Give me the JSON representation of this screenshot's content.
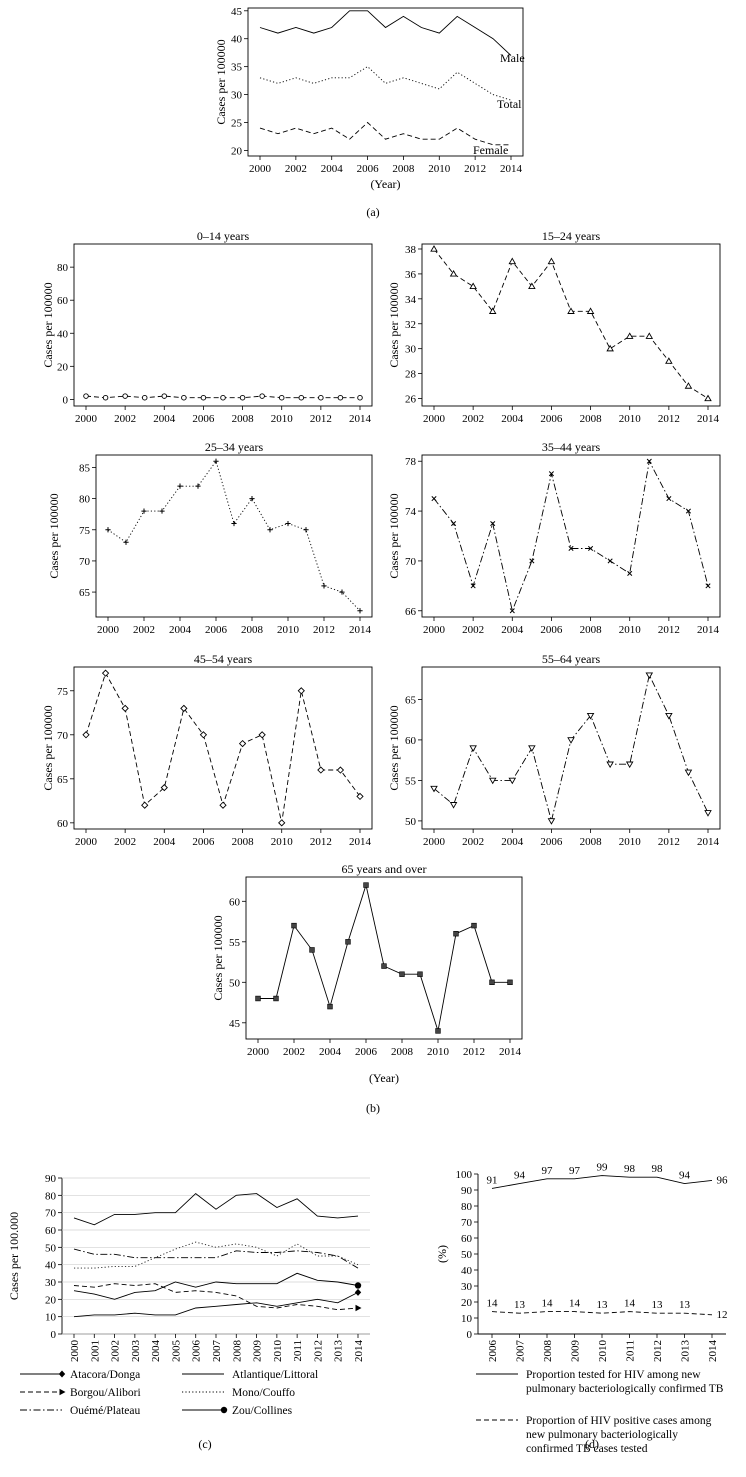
{
  "captions": {
    "a": "(a)",
    "b": "(b)",
    "c": "(c)",
    "d": "(d)"
  },
  "chart_data": [
    {
      "id": "a",
      "type": "line",
      "title": "",
      "xlabel": "(Year)",
      "ylabel": "Cases per 100000",
      "x": [
        2000,
        2001,
        2002,
        2003,
        2004,
        2005,
        2006,
        2007,
        2008,
        2009,
        2010,
        2011,
        2012,
        2013,
        2014
      ],
      "xticks": [
        2000,
        2002,
        2004,
        2006,
        2008,
        2010,
        2012,
        2014
      ],
      "ylim": [
        19,
        45.5
      ],
      "yticks": [
        20,
        25,
        30,
        35,
        40,
        45
      ],
      "grid": false,
      "series": [
        {
          "name": "Male",
          "style": "solid",
          "values": [
            42,
            41,
            42,
            41,
            42,
            45,
            45,
            42,
            44,
            42,
            41,
            44,
            42,
            40,
            37
          ]
        },
        {
          "name": "Total",
          "style": "dotted",
          "values": [
            33,
            32,
            33,
            32,
            33,
            33,
            35,
            32,
            33,
            32,
            31,
            34,
            32,
            30,
            29
          ]
        },
        {
          "name": "Female",
          "style": "dashed",
          "values": [
            24,
            23,
            24,
            23,
            24,
            22,
            25,
            22,
            23,
            22,
            22,
            24,
            22,
            21,
            21
          ]
        }
      ]
    },
    {
      "id": "b1",
      "type": "line",
      "title": "0–14 years",
      "xlabel": "",
      "ylabel": "Cases per 100000",
      "x": [
        2000,
        2001,
        2002,
        2003,
        2004,
        2005,
        2006,
        2007,
        2008,
        2009,
        2010,
        2011,
        2012,
        2013,
        2014
      ],
      "xticks": [
        2000,
        2002,
        2004,
        2006,
        2008,
        2010,
        2012,
        2014
      ],
      "ylim": [
        -4,
        94
      ],
      "yticks": [
        0,
        20,
        40,
        60,
        80
      ],
      "series": [
        {
          "marker": "circle",
          "style": "dashed",
          "values": [
            2,
            1,
            2,
            1,
            2,
            1,
            1,
            1,
            1,
            2,
            1,
            1,
            1,
            1,
            1
          ]
        }
      ]
    },
    {
      "id": "b2",
      "type": "line",
      "title": "15–24 years",
      "xlabel": "",
      "ylabel": "Cases per 100000",
      "x": [
        2000,
        2001,
        2002,
        2003,
        2004,
        2005,
        2006,
        2007,
        2008,
        2009,
        2010,
        2011,
        2012,
        2013,
        2014
      ],
      "xticks": [
        2000,
        2002,
        2004,
        2006,
        2008,
        2010,
        2012,
        2014
      ],
      "ylim": [
        25.4,
        38.4
      ],
      "yticks": [
        26,
        28,
        30,
        32,
        34,
        36,
        38
      ],
      "series": [
        {
          "marker": "triangle-up",
          "style": "dashed",
          "values": [
            38,
            36,
            35,
            33,
            37,
            35,
            37,
            33,
            33,
            30,
            31,
            31,
            29,
            27,
            26
          ]
        }
      ]
    },
    {
      "id": "b3",
      "type": "line",
      "title": "25–34 years",
      "xlabel": "",
      "ylabel": "Cases per 100000",
      "x": [
        2000,
        2001,
        2002,
        2003,
        2004,
        2005,
        2006,
        2007,
        2008,
        2009,
        2010,
        2011,
        2012,
        2013,
        2014
      ],
      "xticks": [
        2000,
        2002,
        2004,
        2006,
        2008,
        2010,
        2012,
        2014
      ],
      "ylim": [
        61,
        87
      ],
      "yticks": [
        65,
        70,
        75,
        80,
        85
      ],
      "series": [
        {
          "marker": "plus",
          "style": "dotted",
          "values": [
            75,
            73,
            78,
            78,
            82,
            82,
            86,
            76,
            80,
            75,
            76,
            75,
            66,
            65,
            62
          ]
        }
      ]
    },
    {
      "id": "b4",
      "type": "line",
      "title": "35–44 years",
      "xlabel": "",
      "ylabel": "Cases per 100000",
      "x": [
        2000,
        2001,
        2002,
        2003,
        2004,
        2005,
        2006,
        2007,
        2008,
        2009,
        2010,
        2011,
        2012,
        2013,
        2014
      ],
      "xticks": [
        2000,
        2002,
        2004,
        2006,
        2008,
        2010,
        2012,
        2014
      ],
      "ylim": [
        65.5,
        78.5
      ],
      "yticks": [
        66,
        70,
        74,
        78
      ],
      "series": [
        {
          "marker": "x",
          "style": "dashdot",
          "values": [
            75,
            73,
            68,
            73,
            66,
            70,
            77,
            71,
            71,
            70,
            69,
            78,
            75,
            74,
            68
          ]
        }
      ]
    },
    {
      "id": "b5",
      "type": "line",
      "title": "45–54 years",
      "xlabel": "",
      "ylabel": "Cases per 100000",
      "x": [
        2000,
        2001,
        2002,
        2003,
        2004,
        2005,
        2006,
        2007,
        2008,
        2009,
        2010,
        2011,
        2012,
        2013,
        2014
      ],
      "xticks": [
        2000,
        2002,
        2004,
        2006,
        2008,
        2010,
        2012,
        2014
      ],
      "ylim": [
        59.3,
        77.7
      ],
      "yticks": [
        60,
        65,
        70,
        75
      ],
      "series": [
        {
          "marker": "diamond",
          "style": "dashed",
          "values": [
            70,
            77,
            73,
            62,
            64,
            73,
            70,
            62,
            69,
            70,
            60,
            75,
            66,
            66,
            63
          ]
        }
      ]
    },
    {
      "id": "b6",
      "type": "line",
      "title": "55–64 years",
      "xlabel": "",
      "ylabel": "Cases per 100000",
      "x": [
        2000,
        2001,
        2002,
        2003,
        2004,
        2005,
        2006,
        2007,
        2008,
        2009,
        2010,
        2011,
        2012,
        2013,
        2014
      ],
      "xticks": [
        2000,
        2002,
        2004,
        2006,
        2008,
        2010,
        2012,
        2014
      ],
      "ylim": [
        49,
        69
      ],
      "yticks": [
        50,
        55,
        60,
        65
      ],
      "series": [
        {
          "marker": "triangle-down",
          "style": "dashdot",
          "values": [
            54,
            52,
            59,
            55,
            55,
            59,
            50,
            60,
            63,
            57,
            57,
            68,
            63,
            56,
            51
          ]
        }
      ]
    },
    {
      "id": "b7",
      "type": "line",
      "title": "65 years and over",
      "xlabel": "(Year)",
      "ylabel": "Cases per 100000",
      "x": [
        2000,
        2001,
        2002,
        2003,
        2004,
        2005,
        2006,
        2007,
        2008,
        2009,
        2010,
        2011,
        2012,
        2013,
        2014
      ],
      "xticks": [
        2000,
        2002,
        2004,
        2006,
        2008,
        2010,
        2012,
        2014
      ],
      "ylim": [
        43,
        63
      ],
      "yticks": [
        45,
        50,
        55,
        60
      ],
      "series": [
        {
          "marker": "square",
          "style": "solid",
          "values": [
            48,
            48,
            57,
            54,
            47,
            55,
            62,
            52,
            51,
            51,
            44,
            56,
            57,
            50,
            50
          ]
        }
      ]
    },
    {
      "id": "c",
      "type": "line",
      "title": "",
      "xlabel": "",
      "ylabel": "Cases per 100.000",
      "x": [
        2000,
        2001,
        2002,
        2003,
        2004,
        2005,
        2006,
        2007,
        2008,
        2009,
        2010,
        2011,
        2012,
        2013,
        2014
      ],
      "xticks": [
        2000,
        2001,
        2002,
        2003,
        2004,
        2005,
        2006,
        2007,
        2008,
        2009,
        2010,
        2011,
        2012,
        2013,
        2014
      ],
      "ylim": [
        0,
        90
      ],
      "yticks": [
        0,
        10,
        20,
        30,
        40,
        50,
        60,
        70,
        80,
        90
      ],
      "legend": "bottom",
      "series": [
        {
          "name": "Atacora/Donga",
          "style": "solid",
          "end_marker": "diamond",
          "values": [
            10,
            11,
            11,
            12,
            11,
            11,
            15,
            16,
            17,
            18,
            16,
            18,
            20,
            18,
            24
          ]
        },
        {
          "name": "Borgou/Alibori",
          "style": "dashed",
          "end_marker": "arrow",
          "values": [
            28,
            27,
            29,
            28,
            29,
            24,
            25,
            24,
            22,
            16,
            15,
            17,
            16,
            14,
            15
          ]
        },
        {
          "name": "Ouémé/Plateau",
          "style": "dashdot",
          "values": [
            49,
            46,
            46,
            44,
            44,
            44,
            44,
            44,
            48,
            47,
            47,
            48,
            47,
            45,
            38
          ]
        },
        {
          "name": "Atlantique/Littoral",
          "style": "solid",
          "values": [
            67,
            63,
            69,
            69,
            70,
            70,
            81,
            72,
            80,
            81,
            73,
            78,
            68,
            67,
            68
          ]
        },
        {
          "name": "Mono/Couffo",
          "style": "dotted",
          "values": [
            38,
            38,
            39,
            39,
            44,
            49,
            53,
            50,
            52,
            50,
            45,
            52,
            45,
            45,
            40
          ]
        },
        {
          "name": "Zou/Collines",
          "style": "solid",
          "end_marker": "circle",
          "values": [
            25,
            23,
            20,
            24,
            25,
            30,
            27,
            30,
            29,
            29,
            29,
            35,
            31,
            30,
            28
          ]
        }
      ]
    },
    {
      "id": "d",
      "type": "line",
      "title": "",
      "xlabel": "",
      "ylabel": "(%)",
      "x": [
        2006,
        2007,
        2008,
        2009,
        2010,
        2011,
        2012,
        2013,
        2014
      ],
      "xticks": [
        2006,
        2007,
        2008,
        2009,
        2010,
        2011,
        2012,
        2013,
        2014
      ],
      "ylim": [
        0,
        100
      ],
      "yticks": [
        0,
        10,
        20,
        30,
        40,
        50,
        60,
        70,
        80,
        90,
        100
      ],
      "legend": "bottom",
      "series": [
        {
          "name": "Proportion tested for HIV among new pulmonary bacteriologically confirmed TB",
          "style": "solid",
          "values": [
            91,
            94,
            97,
            97,
            99,
            98,
            98,
            94,
            96
          ],
          "labels": [
            "91",
            "94",
            "97",
            "97",
            "99",
            "98",
            "98",
            "94",
            "96"
          ]
        },
        {
          "name": "Proportion of HIV positive cases among new pulmonary bacteriologically confirmed TB cases tested",
          "style": "dashed",
          "values": [
            14,
            13,
            14,
            14,
            13,
            14,
            13,
            13,
            12
          ],
          "labels": [
            "14",
            "13",
            "14",
            "14",
            "13",
            "14",
            "13",
            "13",
            "12"
          ]
        }
      ]
    }
  ]
}
